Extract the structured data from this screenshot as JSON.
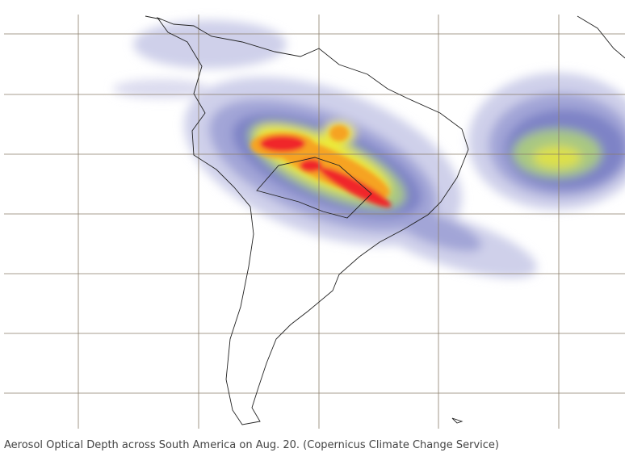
{
  "caption": "Aerosol Optical Depth across South America on Aug. 20. (Copernicus Climate Change Service)"
}
